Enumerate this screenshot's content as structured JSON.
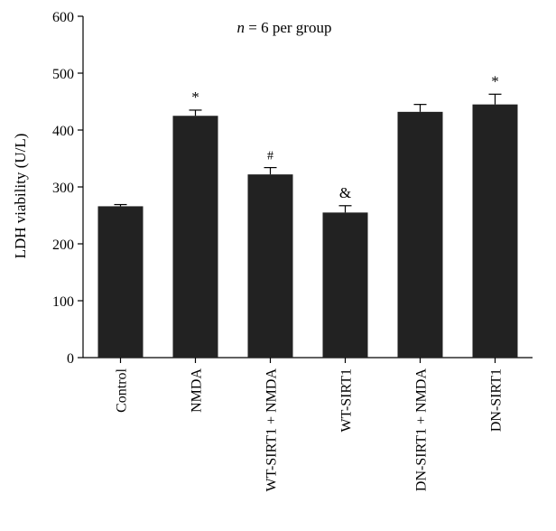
{
  "chart_data": {
    "type": "bar",
    "annotation_prefix": "n",
    "annotation_suffix": " = 6 per group",
    "ylabel": "LDH viability (U/L)",
    "xlabel": "",
    "ylim": [
      0,
      600
    ],
    "yticks": [
      0,
      100,
      200,
      300,
      400,
      500,
      600
    ],
    "ytick_labels": [
      "0",
      "100",
      "200",
      "300",
      "400",
      "500",
      "600"
    ],
    "categories": [
      "Control",
      "NMDA",
      "WT-SIRT1 + NMDA",
      "WT-SIRT1",
      "DN-SIRT1 + NMDA",
      "DN-SIRT1"
    ],
    "values": [
      266,
      425,
      322,
      255,
      432,
      445
    ],
    "errors": [
      3,
      10,
      12,
      12,
      13,
      18
    ],
    "significance": [
      "",
      "*",
      "#",
      "&",
      "",
      "*"
    ],
    "bar_color": "#222222",
    "grid": false
  }
}
